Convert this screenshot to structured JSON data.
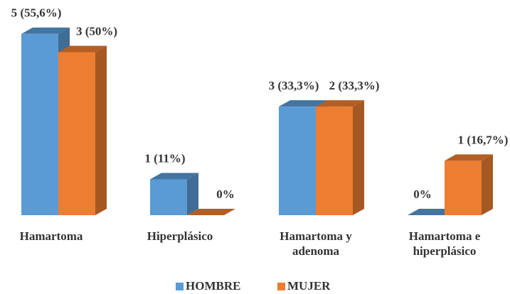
{
  "chart_data": {
    "type": "bar3d",
    "categories": [
      "Hamartoma",
      "Hiperplásico",
      "Hamartoma y adenoma",
      "Hamartoma e hiperplásico"
    ],
    "series": [
      {
        "name": "HOMBRE",
        "color": "#5b9bd5",
        "values": [
          55.6,
          11,
          33.3,
          0
        ],
        "value_labels": [
          "5 (55,6%)",
          "1 (11%)",
          "3 (33,3%)",
          "0%"
        ]
      },
      {
        "name": "MUJER",
        "color": "#ed7d31",
        "values": [
          50,
          0,
          33.3,
          16.7
        ],
        "value_labels": [
          "3 (50%)",
          "0%",
          "2 (33,3%)",
          "1 (16,7%)"
        ]
      }
    ],
    "legend": "bottom"
  }
}
